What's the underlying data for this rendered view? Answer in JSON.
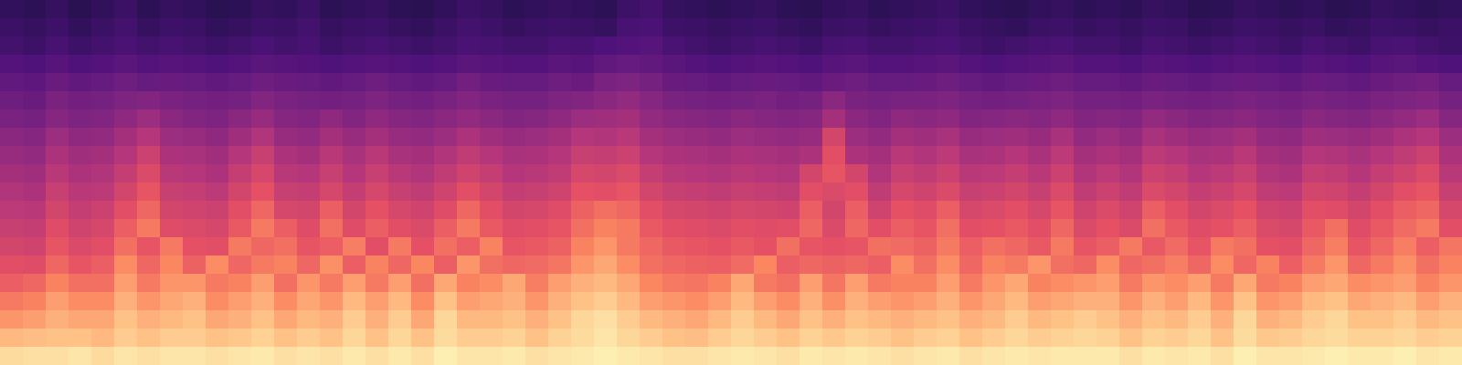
{
  "chart_data": {
    "type": "heatmap",
    "tick_labels": false,
    "color_range": [
      0,
      100
    ],
    "cells": [
      [
        18,
        17,
        19,
        16,
        18,
        20,
        17,
        19,
        18,
        16,
        17,
        19,
        18,
        20,
        17,
        18,
        19,
        17,
        16,
        18,
        20,
        19,
        17,
        18,
        19,
        18,
        17,
        21,
        22,
        19,
        18,
        17,
        18,
        19,
        17,
        16,
        18,
        19,
        17,
        18,
        19,
        20,
        18,
        17,
        16,
        18,
        19,
        17,
        18,
        17,
        19,
        18,
        16,
        17,
        19,
        18,
        17,
        18,
        16,
        17,
        19,
        18,
        17,
        18
      ],
      [
        20,
        19,
        21,
        18,
        20,
        22,
        19,
        21,
        20,
        18,
        19,
        21,
        20,
        22,
        19,
        20,
        21,
        19,
        18,
        20,
        22,
        21,
        19,
        20,
        21,
        20,
        19,
        23,
        24,
        21,
        20,
        19,
        20,
        21,
        19,
        18,
        20,
        21,
        19,
        20,
        21,
        22,
        20,
        19,
        18,
        20,
        21,
        19,
        20,
        19,
        21,
        20,
        18,
        19,
        21,
        20,
        19,
        20,
        18,
        19,
        21,
        20,
        19,
        20
      ],
      [
        22,
        21,
        23,
        21,
        22,
        24,
        22,
        23,
        22,
        21,
        22,
        24,
        22,
        23,
        21,
        22,
        23,
        22,
        21,
        22,
        24,
        23,
        22,
        22,
        24,
        23,
        25,
        26,
        27,
        24,
        22,
        21,
        22,
        23,
        22,
        21,
        23,
        24,
        22,
        22,
        23,
        24,
        22,
        21,
        22,
        23,
        24,
        22,
        22,
        21,
        23,
        22,
        21,
        22,
        23,
        22,
        21,
        23,
        22,
        21,
        23,
        24,
        22,
        21
      ],
      [
        26,
        25,
        27,
        25,
        26,
        28,
        26,
        27,
        26,
        25,
        26,
        28,
        27,
        26,
        25,
        26,
        27,
        26,
        25,
        26,
        28,
        27,
        26,
        26,
        28,
        27,
        30,
        31,
        30,
        28,
        26,
        25,
        26,
        27,
        26,
        25,
        27,
        28,
        26,
        26,
        27,
        28,
        26,
        25,
        26,
        27,
        28,
        26,
        26,
        25,
        27,
        26,
        25,
        26,
        27,
        26,
        25,
        27,
        26,
        25,
        27,
        28,
        26,
        25
      ],
      [
        30,
        29,
        32,
        30,
        31,
        33,
        31,
        32,
        31,
        30,
        31,
        33,
        32,
        31,
        30,
        31,
        33,
        31,
        30,
        31,
        34,
        32,
        31,
        31,
        33,
        32,
        36,
        37,
        35,
        32,
        31,
        30,
        31,
        32,
        31,
        30,
        32,
        33,
        31,
        31,
        32,
        33,
        31,
        30,
        31,
        32,
        33,
        31,
        31,
        30,
        32,
        31,
        30,
        31,
        32,
        31,
        30,
        32,
        31,
        30,
        32,
        33,
        34,
        31
      ],
      [
        33,
        32,
        36,
        34,
        35,
        37,
        38,
        36,
        35,
        34,
        35,
        38,
        36,
        35,
        34,
        35,
        37,
        35,
        34,
        36,
        38,
        36,
        35,
        35,
        37,
        38,
        40,
        42,
        39,
        36,
        35,
        34,
        35,
        36,
        34,
        35,
        40,
        36,
        35,
        36,
        36,
        37,
        35,
        34,
        35,
        36,
        37,
        35,
        35,
        34,
        36,
        35,
        34,
        35,
        36,
        35,
        34,
        36,
        35,
        34,
        36,
        37,
        38,
        35
      ],
      [
        36,
        35,
        39,
        37,
        38,
        41,
        44,
        40,
        38,
        37,
        40,
        43,
        39,
        38,
        41,
        38,
        41,
        39,
        38,
        40,
        42,
        40,
        38,
        39,
        41,
        44,
        45,
        46,
        42,
        40,
        39,
        38,
        40,
        39,
        38,
        39,
        46,
        40,
        38,
        41,
        40,
        41,
        38,
        39,
        40,
        39,
        41,
        38,
        39,
        38,
        42,
        40,
        38,
        39,
        40,
        38,
        37,
        40,
        39,
        38,
        40,
        42,
        44,
        39
      ],
      [
        40,
        39,
        44,
        41,
        42,
        46,
        50,
        44,
        43,
        41,
        45,
        49,
        43,
        42,
        46,
        43,
        46,
        43,
        42,
        44,
        48,
        45,
        43,
        44,
        46,
        50,
        49,
        51,
        46,
        44,
        43,
        42,
        44,
        43,
        42,
        43,
        58,
        44,
        42,
        46,
        45,
        47,
        43,
        44,
        45,
        43,
        47,
        42,
        44,
        42,
        47,
        45,
        43,
        44,
        46,
        42,
        41,
        45,
        44,
        43,
        45,
        48,
        50,
        44
      ],
      [
        43,
        42,
        48,
        45,
        46,
        50,
        56,
        48,
        47,
        45,
        50,
        55,
        48,
        46,
        51,
        47,
        51,
        47,
        46,
        49,
        53,
        50,
        47,
        48,
        50,
        55,
        54,
        56,
        50,
        48,
        47,
        46,
        48,
        47,
        46,
        48,
        62,
        48,
        46,
        51,
        49,
        52,
        47,
        48,
        50,
        47,
        52,
        46,
        48,
        46,
        52,
        50,
        47,
        48,
        51,
        46,
        45,
        50,
        49,
        47,
        50,
        53,
        56,
        48
      ],
      [
        46,
        45,
        51,
        48,
        49,
        54,
        60,
        51,
        50,
        48,
        54,
        59,
        51,
        50,
        55,
        50,
        55,
        51,
        49,
        53,
        57,
        54,
        50,
        51,
        53,
        59,
        58,
        60,
        54,
        51,
        50,
        49,
        51,
        50,
        49,
        58,
        64,
        58,
        49,
        55,
        53,
        56,
        51,
        52,
        54,
        51,
        56,
        49,
        52,
        49,
        56,
        54,
        50,
        52,
        55,
        49,
        48,
        54,
        53,
        50,
        54,
        57,
        60,
        51
      ],
      [
        49,
        48,
        55,
        51,
        52,
        58,
        64,
        55,
        54,
        52,
        58,
        63,
        55,
        54,
        59,
        54,
        59,
        55,
        53,
        57,
        62,
        58,
        54,
        55,
        57,
        63,
        62,
        64,
        58,
        55,
        54,
        53,
        55,
        54,
        53,
        62,
        60,
        62,
        53,
        59,
        57,
        60,
        55,
        56,
        58,
        55,
        60,
        53,
        56,
        53,
        60,
        58,
        54,
        56,
        59,
        53,
        52,
        58,
        57,
        54,
        58,
        62,
        64,
        55
      ],
      [
        52,
        51,
        58,
        54,
        56,
        62,
        68,
        58,
        57,
        56,
        62,
        68,
        59,
        58,
        66,
        58,
        63,
        59,
        57,
        61,
        68,
        62,
        58,
        59,
        61,
        67,
        70,
        68,
        62,
        59,
        58,
        57,
        59,
        58,
        57,
        66,
        58,
        66,
        57,
        63,
        61,
        66,
        59,
        60,
        62,
        59,
        64,
        57,
        60,
        57,
        66,
        62,
        58,
        60,
        63,
        57,
        56,
        62,
        61,
        58,
        62,
        66,
        68,
        59
      ],
      [
        55,
        54,
        61,
        57,
        59,
        66,
        72,
        61,
        60,
        59,
        65,
        72,
        66,
        61,
        70,
        61,
        66,
        62,
        60,
        66,
        72,
        65,
        61,
        62,
        64,
        70,
        74,
        72,
        65,
        62,
        61,
        60,
        62,
        61,
        62,
        68,
        60,
        68,
        62,
        66,
        64,
        70,
        62,
        63,
        65,
        62,
        68,
        60,
        63,
        60,
        70,
        65,
        61,
        63,
        66,
        60,
        59,
        65,
        70,
        61,
        65,
        69,
        72,
        62
      ],
      [
        58,
        57,
        64,
        60,
        62,
        70,
        64,
        72,
        63,
        62,
        72,
        68,
        70,
        64,
        66,
        73,
        62,
        72,
        63,
        70,
        66,
        74,
        64,
        65,
        67,
        74,
        78,
        72,
        68,
        65,
        64,
        63,
        65,
        63,
        70,
        64,
        63,
        64,
        70,
        69,
        67,
        72,
        66,
        70,
        68,
        65,
        72,
        64,
        66,
        72,
        65,
        69,
        64,
        72,
        70,
        63,
        62,
        68,
        73,
        64,
        68,
        73,
        66,
        71
      ],
      [
        62,
        61,
        68,
        64,
        66,
        76,
        68,
        75,
        67,
        76,
        68,
        72,
        74,
        68,
        77,
        66,
        74,
        68,
        75,
        66,
        78,
        70,
        68,
        69,
        71,
        78,
        82,
        76,
        70,
        68,
        67,
        66,
        69,
        75,
        66,
        68,
        67,
        68,
        66,
        76,
        70,
        76,
        68,
        74,
        72,
        78,
        70,
        68,
        76,
        68,
        70,
        73,
        68,
        76,
        68,
        74,
        66,
        72,
        78,
        68,
        72,
        77,
        70,
        74
      ],
      [
        66,
        68,
        74,
        70,
        70,
        80,
        72,
        78,
        78,
        72,
        74,
        80,
        70,
        78,
        72,
        80,
        72,
        80,
        70,
        82,
        74,
        76,
        82,
        73,
        80,
        84,
        86,
        82,
        75,
        72,
        71,
        74,
        82,
        72,
        70,
        80,
        71,
        80,
        72,
        74,
        74,
        80,
        72,
        78,
        82,
        74,
        76,
        78,
        80,
        72,
        78,
        76,
        80,
        72,
        82,
        72,
        74,
        80,
        82,
        76,
        78,
        80,
        74,
        78
      ],
      [
        72,
        74,
        80,
        76,
        76,
        84,
        78,
        82,
        84,
        76,
        80,
        84,
        76,
        82,
        78,
        86,
        80,
        86,
        76,
        88,
        80,
        82,
        84,
        78,
        84,
        88,
        90,
        86,
        80,
        78,
        76,
        80,
        86,
        80,
        76,
        84,
        77,
        84,
        80,
        78,
        80,
        84,
        78,
        82,
        86,
        80,
        82,
        84,
        84,
        78,
        84,
        80,
        86,
        78,
        88,
        78,
        80,
        86,
        88,
        82,
        84,
        86,
        80,
        84
      ],
      [
        78,
        80,
        84,
        82,
        82,
        88,
        84,
        86,
        88,
        82,
        84,
        88,
        82,
        86,
        84,
        90,
        84,
        90,
        82,
        92,
        86,
        86,
        88,
        84,
        88,
        92,
        94,
        90,
        86,
        84,
        82,
        86,
        90,
        86,
        82,
        88,
        84,
        88,
        86,
        84,
        86,
        88,
        84,
        86,
        90,
        86,
        88,
        90,
        88,
        84,
        88,
        86,
        90,
        84,
        92,
        84,
        86,
        90,
        92,
        88,
        88,
        90,
        86,
        88
      ],
      [
        86,
        87,
        88,
        88,
        86,
        90,
        88,
        90,
        90,
        88,
        89,
        91,
        88,
        90,
        88,
        92,
        88,
        92,
        88,
        93,
        90,
        90,
        91,
        88,
        91,
        93,
        95,
        92,
        90,
        88,
        87,
        90,
        92,
        90,
        88,
        91,
        89,
        91,
        90,
        88,
        90,
        91,
        88,
        90,
        92,
        90,
        91,
        92,
        91,
        88,
        91,
        90,
        92,
        88,
        93,
        89,
        90,
        92,
        93,
        91,
        91,
        92,
        90,
        91
      ],
      [
        93,
        94,
        94,
        95,
        93,
        95,
        94,
        95,
        95,
        94,
        95,
        96,
        94,
        95,
        94,
        96,
        94,
        96,
        94,
        97,
        95,
        95,
        96,
        94,
        95,
        96,
        97,
        96,
        95,
        94,
        94,
        95,
        96,
        95,
        94,
        96,
        95,
        96,
        95,
        94,
        95,
        96,
        94,
        95,
        96,
        95,
        96,
        96,
        96,
        94,
        96,
        95,
        96,
        94,
        97,
        95,
        95,
        96,
        97,
        96,
        96,
        97,
        95,
        96
      ]
    ]
  }
}
